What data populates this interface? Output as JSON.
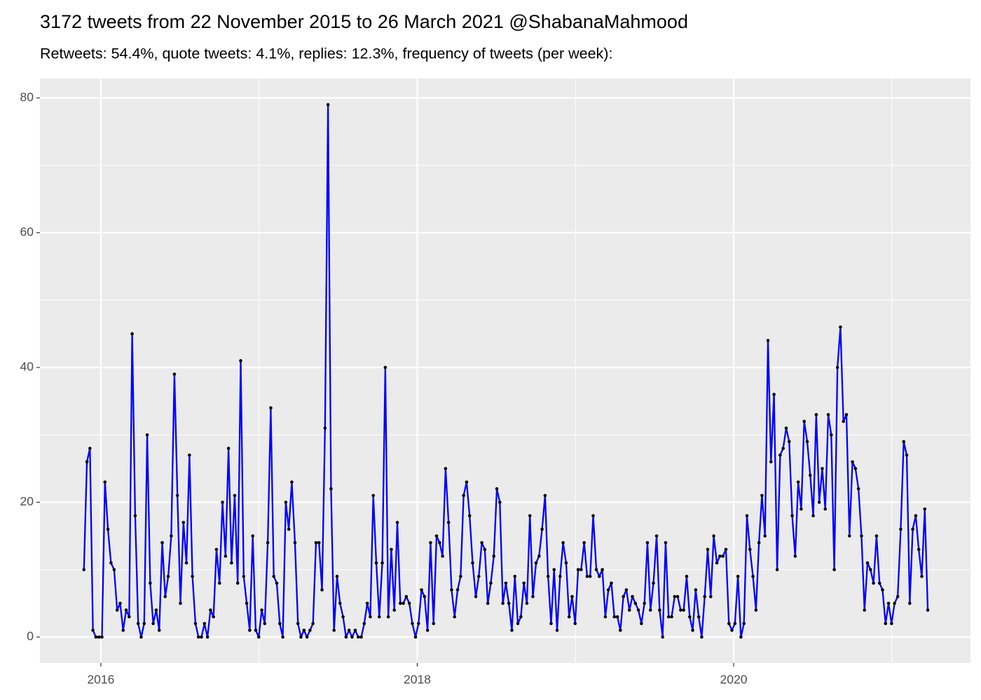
{
  "chart_data": {
    "type": "line",
    "title": "3172 tweets from 22 November 2015 to 26 March 2021 @ShabanaMahmood",
    "subtitle": "Retweets: 54.4%, quote tweets: 4.1%, replies: 12.3%, frequency of tweets (per week):",
    "x": [
      2015.893,
      2015.912,
      2015.931,
      2015.95,
      2015.969,
      2015.988,
      2016.007,
      2016.026,
      2016.045,
      2016.064,
      2016.084,
      2016.103,
      2016.122,
      2016.141,
      2016.16,
      2016.179,
      2016.198,
      2016.217,
      2016.236,
      2016.255,
      2016.274,
      2016.293,
      2016.312,
      2016.331,
      2016.35,
      2016.369,
      2016.388,
      2016.407,
      2016.426,
      2016.445,
      2016.465,
      2016.484,
      2016.503,
      2016.522,
      2016.541,
      2016.56,
      2016.579,
      2016.598,
      2016.617,
      2016.636,
      2016.655,
      2016.674,
      2016.693,
      2016.712,
      2016.731,
      2016.75,
      2016.769,
      2016.788,
      2016.807,
      2016.826,
      2016.846,
      2016.865,
      2016.884,
      2016.903,
      2016.922,
      2016.941,
      2016.96,
      2016.979,
      2016.998,
      2017.017,
      2017.036,
      2017.055,
      2017.074,
      2017.093,
      2017.112,
      2017.131,
      2017.15,
      2017.169,
      2017.188,
      2017.207,
      2017.227,
      2017.246,
      2017.265,
      2017.284,
      2017.303,
      2017.322,
      2017.341,
      2017.36,
      2017.379,
      2017.398,
      2017.417,
      2017.436,
      2017.455,
      2017.474,
      2017.493,
      2017.512,
      2017.531,
      2017.55,
      2017.569,
      2017.588,
      2017.608,
      2017.627,
      2017.646,
      2017.665,
      2017.684,
      2017.703,
      2017.722,
      2017.741,
      2017.76,
      2017.779,
      2017.798,
      2017.817,
      2017.836,
      2017.855,
      2017.874,
      2017.893,
      2017.912,
      2017.931,
      2017.95,
      2017.969,
      2017.989,
      2018.008,
      2018.027,
      2018.046,
      2018.065,
      2018.084,
      2018.103,
      2018.122,
      2018.141,
      2018.16,
      2018.179,
      2018.198,
      2018.217,
      2018.236,
      2018.255,
      2018.274,
      2018.293,
      2018.312,
      2018.331,
      2018.35,
      2018.37,
      2018.389,
      2018.408,
      2018.427,
      2018.446,
      2018.465,
      2018.484,
      2018.503,
      2018.522,
      2018.541,
      2018.56,
      2018.579,
      2018.598,
      2018.617,
      2018.636,
      2018.655,
      2018.674,
      2018.693,
      2018.712,
      2018.731,
      2018.751,
      2018.77,
      2018.789,
      2018.808,
      2018.827,
      2018.846,
      2018.865,
      2018.884,
      2018.903,
      2018.922,
      2018.941,
      2018.96,
      2018.979,
      2018.998,
      2019.017,
      2019.036,
      2019.055,
      2019.074,
      2019.093,
      2019.112,
      2019.132,
      2019.151,
      2019.17,
      2019.189,
      2019.208,
      2019.227,
      2019.246,
      2019.265,
      2019.284,
      2019.303,
      2019.322,
      2019.341,
      2019.36,
      2019.379,
      2019.398,
      2019.417,
      2019.436,
      2019.455,
      2019.474,
      2019.493,
      2019.513,
      2019.532,
      2019.551,
      2019.57,
      2019.589,
      2019.608,
      2019.627,
      2019.646,
      2019.665,
      2019.684,
      2019.703,
      2019.722,
      2019.741,
      2019.76,
      2019.779,
      2019.798,
      2019.817,
      2019.836,
      2019.855,
      2019.874,
      2019.894,
      2019.913,
      2019.932,
      2019.951,
      2019.97,
      2019.989,
      2020.008,
      2020.027,
      2020.046,
      2020.065,
      2020.084,
      2020.103,
      2020.122,
      2020.141,
      2020.16,
      2020.179,
      2020.198,
      2020.217,
      2020.236,
      2020.255,
      2020.275,
      2020.294,
      2020.313,
      2020.332,
      2020.351,
      2020.37,
      2020.389,
      2020.408,
      2020.427,
      2020.446,
      2020.465,
      2020.484,
      2020.503,
      2020.522,
      2020.541,
      2020.56,
      2020.579,
      2020.598,
      2020.617,
      2020.636,
      2020.656,
      2020.675,
      2020.694,
      2020.713,
      2020.732,
      2020.751,
      2020.77,
      2020.789,
      2020.808,
      2020.827,
      2020.846,
      2020.865,
      2020.884,
      2020.903,
      2020.922,
      2020.941,
      2020.96,
      2020.979,
      2020.998,
      2021.017,
      2021.037,
      2021.056,
      2021.075,
      2021.094,
      2021.113,
      2021.132,
      2021.151,
      2021.17,
      2021.189,
      2021.208,
      2021.227
    ],
    "values": [
      10,
      26,
      28,
      1,
      0,
      0,
      0,
      23,
      16,
      11,
      10,
      4,
      5,
      1,
      4,
      3,
      45,
      18,
      2,
      0,
      2,
      30,
      8,
      2,
      4,
      1,
      14,
      6,
      9,
      15,
      39,
      21,
      5,
      17,
      11,
      27,
      9,
      2,
      0,
      0,
      2,
      0,
      4,
      3,
      13,
      8,
      20,
      12,
      28,
      11,
      21,
      8,
      41,
      9,
      5,
      1,
      15,
      1,
      0,
      4,
      2,
      14,
      34,
      9,
      8,
      2,
      0,
      20,
      16,
      23,
      14,
      2,
      0,
      1,
      0,
      1,
      2,
      14,
      14,
      7,
      31,
      79,
      22,
      1,
      9,
      5,
      3,
      0,
      1,
      0,
      1,
      0,
      0,
      2,
      5,
      3,
      21,
      11,
      3,
      11,
      40,
      3,
      13,
      4,
      17,
      5,
      5,
      6,
      5,
      2,
      0,
      2,
      7,
      6,
      1,
      14,
      2,
      15,
      14,
      12,
      25,
      17,
      7,
      3,
      7,
      9,
      21,
      23,
      18,
      11,
      6,
      9,
      14,
      13,
      5,
      8,
      12,
      22,
      20,
      5,
      8,
      5,
      1,
      9,
      2,
      3,
      8,
      5,
      18,
      6,
      11,
      12,
      16,
      21,
      9,
      2,
      10,
      1,
      9,
      14,
      11,
      3,
      6,
      2,
      10,
      10,
      14,
      9,
      9,
      18,
      10,
      9,
      10,
      3,
      7,
      8,
      3,
      3,
      1,
      6,
      7,
      4,
      6,
      5,
      4,
      2,
      5,
      14,
      4,
      8,
      15,
      4,
      0,
      14,
      3,
      3,
      6,
      6,
      4,
      4,
      9,
      3,
      1,
      7,
      3,
      0,
      6,
      13,
      6,
      15,
      11,
      12,
      12,
      13,
      2,
      1,
      2,
      9,
      0,
      2,
      18,
      13,
      9,
      4,
      14,
      21,
      15,
      44,
      26,
      36,
      10,
      27,
      28,
      31,
      29,
      18,
      12,
      23,
      19,
      32,
      29,
      24,
      18,
      33,
      20,
      25,
      19,
      33,
      30,
      10,
      40,
      46,
      32,
      33,
      15,
      26,
      25,
      22,
      15,
      4,
      11,
      10,
      8,
      15,
      8,
      7,
      2,
      5,
      2,
      5,
      6,
      16,
      29,
      27,
      5,
      16,
      18,
      13,
      9,
      19,
      4
    ],
    "color": "#0000ff",
    "point_color": "#000000",
    "xlim": [
      2015.615,
      2021.497
    ],
    "xticks": [
      2016,
      2018,
      2020
    ],
    "ylim": [
      -3.84,
      82.9
    ],
    "yticks": [
      0,
      20,
      40,
      60,
      80
    ],
    "grid": true,
    "minor_grid": true
  }
}
